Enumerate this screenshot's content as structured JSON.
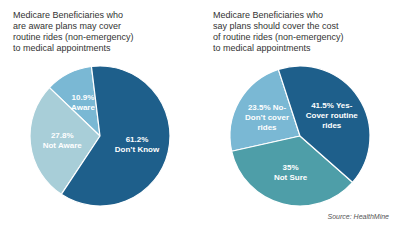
{
  "chart_data": [
    {
      "type": "pie",
      "title": "Medicare Beneficiaries who\nare aware plans may cover\nroutine rides (non-emergency)\nto medical appointments",
      "values": [
        10.9,
        27.8,
        61.2
      ],
      "value_labels": [
        "10.9%\nAware",
        "27.8%\nNot Aware",
        "61.2%\nDon’t Know"
      ],
      "colors": [
        "#7ab8d4",
        "#a8ced8",
        "#1e5f8b"
      ]
    },
    {
      "type": "pie",
      "title": "Medicare Beneficiaries who\nsay plans should cover the cost\nof routine rides (non-emergency)\nto medical appointments",
      "values": [
        23.5,
        35,
        41.5
      ],
      "value_labels": [
        "23.5% No-\nDon’t cover\nrides",
        "35%\nNot Sure",
        "41.5% Yes-\nCover routine\nrides"
      ],
      "colors": [
        "#7ab8d4",
        "#4e9ea8",
        "#1e5f8b"
      ],
      "annotations": [
        "Source: HealthMine"
      ]
    }
  ]
}
